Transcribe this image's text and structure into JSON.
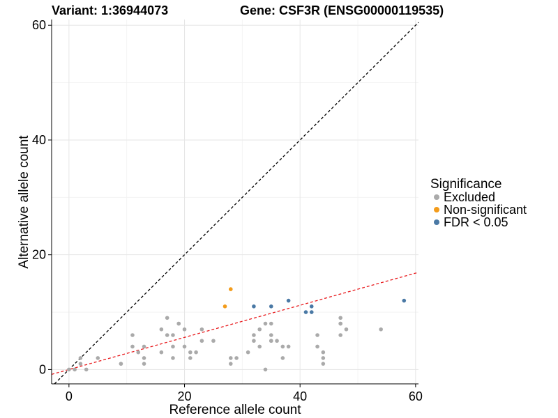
{
  "chart_data": {
    "type": "scatter",
    "title_left": "Variant: 1:36944073",
    "title_right": "Gene: CSF3R (ENSG00000119535)",
    "xlabel": "Reference allele count",
    "ylabel": "Alternative allele count",
    "xlim": [
      -3,
      60.5
    ],
    "ylim": [
      -2.5,
      61
    ],
    "x_ticks": [
      0,
      20,
      40,
      60
    ],
    "y_ticks": [
      0,
      20,
      40,
      60
    ],
    "grid": true,
    "legend": {
      "title": "Significance",
      "position": "right",
      "entries": [
        {
          "label": "Excluded",
          "color": "#aaaaaa"
        },
        {
          "label": "Non-significant",
          "color": "#f39c1b"
        },
        {
          "label": "FDR < 0.05",
          "color": "#4a79a5"
        }
      ]
    },
    "reference_lines": [
      {
        "name": "",
        "slope": 1,
        "intercept": 0,
        "color": "#000000",
        "style": "dashed"
      },
      {
        "name": "",
        "slope": 0.28,
        "intercept": 0,
        "color": "#e8191c",
        "style": "dashed"
      }
    ],
    "series": [
      {
        "group": "Excluded",
        "color": "#aaaaaa",
        "points": [
          [
            0,
            0
          ],
          [
            1,
            0
          ],
          [
            2,
            1
          ],
          [
            2,
            2
          ],
          [
            3,
            0
          ],
          [
            5,
            2
          ],
          [
            9,
            1
          ],
          [
            9,
            1
          ],
          [
            11,
            4
          ],
          [
            11,
            6
          ],
          [
            12,
            3
          ],
          [
            13,
            1
          ],
          [
            13,
            2
          ],
          [
            13,
            4
          ],
          [
            16,
            3
          ],
          [
            16,
            7
          ],
          [
            17,
            6
          ],
          [
            17,
            9
          ],
          [
            18,
            2
          ],
          [
            18,
            4
          ],
          [
            18,
            6
          ],
          [
            19,
            8
          ],
          [
            19,
            8
          ],
          [
            20,
            4
          ],
          [
            20,
            7
          ],
          [
            21,
            2
          ],
          [
            21,
            3
          ],
          [
            22,
            3
          ],
          [
            23,
            5
          ],
          [
            23,
            7
          ],
          [
            25,
            5
          ],
          [
            28,
            1
          ],
          [
            28,
            2
          ],
          [
            29,
            2
          ],
          [
            31,
            3
          ],
          [
            32,
            5
          ],
          [
            32,
            6
          ],
          [
            33,
            4
          ],
          [
            33,
            7
          ],
          [
            34,
            0
          ],
          [
            34,
            8
          ],
          [
            35,
            5
          ],
          [
            35,
            5
          ],
          [
            35,
            6
          ],
          [
            35,
            8
          ],
          [
            36,
            5
          ],
          [
            37,
            2
          ],
          [
            37,
            4
          ],
          [
            38,
            4
          ],
          [
            43,
            4
          ],
          [
            43,
            6
          ],
          [
            44,
            1
          ],
          [
            44,
            2
          ],
          [
            44,
            3
          ],
          [
            47,
            6
          ],
          [
            47,
            8
          ],
          [
            47,
            8
          ],
          [
            47,
            9
          ],
          [
            48,
            7
          ],
          [
            54,
            7
          ]
        ]
      },
      {
        "group": "Non-significant",
        "color": "#f39c1b",
        "points": [
          [
            27,
            11
          ],
          [
            28,
            14
          ]
        ]
      },
      {
        "group": "FDR < 0.05",
        "color": "#4a79a5",
        "points": [
          [
            32,
            11
          ],
          [
            35,
            11
          ],
          [
            38,
            12
          ],
          [
            41,
            10
          ],
          [
            42,
            10
          ],
          [
            42,
            11
          ],
          [
            58,
            12
          ]
        ]
      }
    ]
  }
}
